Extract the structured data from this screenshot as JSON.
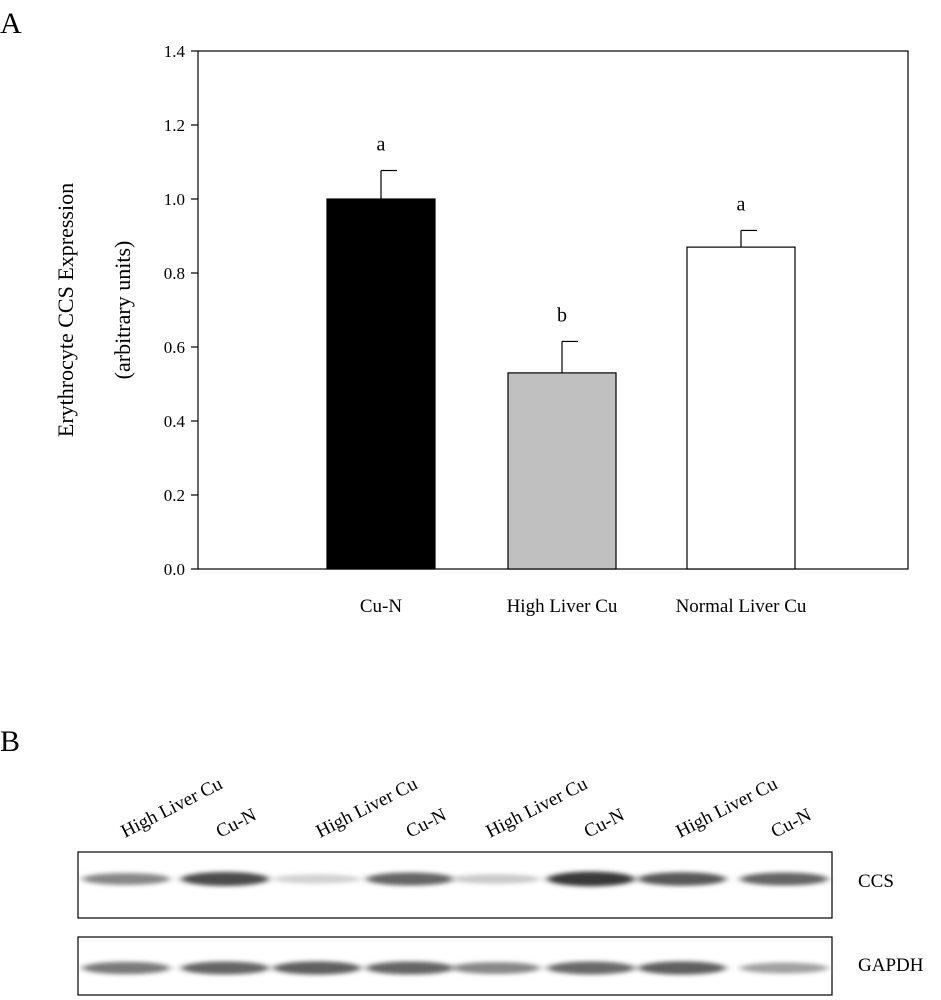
{
  "panel_a": {
    "label": "A",
    "chart_data": {
      "type": "bar",
      "categories": [
        "Cu-N",
        "High Liver Cu",
        "Normal Liver Cu"
      ],
      "values": [
        1.0,
        0.53,
        0.87
      ],
      "error": [
        0.077,
        0.085,
        0.045
      ],
      "significance": [
        "a",
        "b",
        "a"
      ],
      "bar_colors": [
        "#000000",
        "#c0c0c0",
        "#ffffff"
      ],
      "ylabel_line1": "Erythrocyte CCS Expression",
      "ylabel_line2": "(arbitrary units)",
      "ylim": [
        0.0,
        1.4
      ],
      "yticks": [
        "0.0",
        "0.2",
        "0.4",
        "0.6",
        "0.8",
        "1.0",
        "1.2",
        "1.4"
      ],
      "grid": false
    }
  },
  "panel_b": {
    "label": "B",
    "lanes": [
      "High Liver Cu",
      "Cu-N",
      "High Liver Cu",
      "Cu-N",
      "High Liver Cu",
      "Cu-N",
      "High Liver Cu",
      "Cu-N"
    ],
    "blots": [
      {
        "name": "CCS",
        "intensity": [
          0.55,
          0.85,
          0.18,
          0.72,
          0.22,
          0.95,
          0.78,
          0.72
        ]
      },
      {
        "name": "GAPDH",
        "intensity": [
          0.62,
          0.72,
          0.75,
          0.72,
          0.55,
          0.7,
          0.75,
          0.42
        ]
      }
    ]
  }
}
